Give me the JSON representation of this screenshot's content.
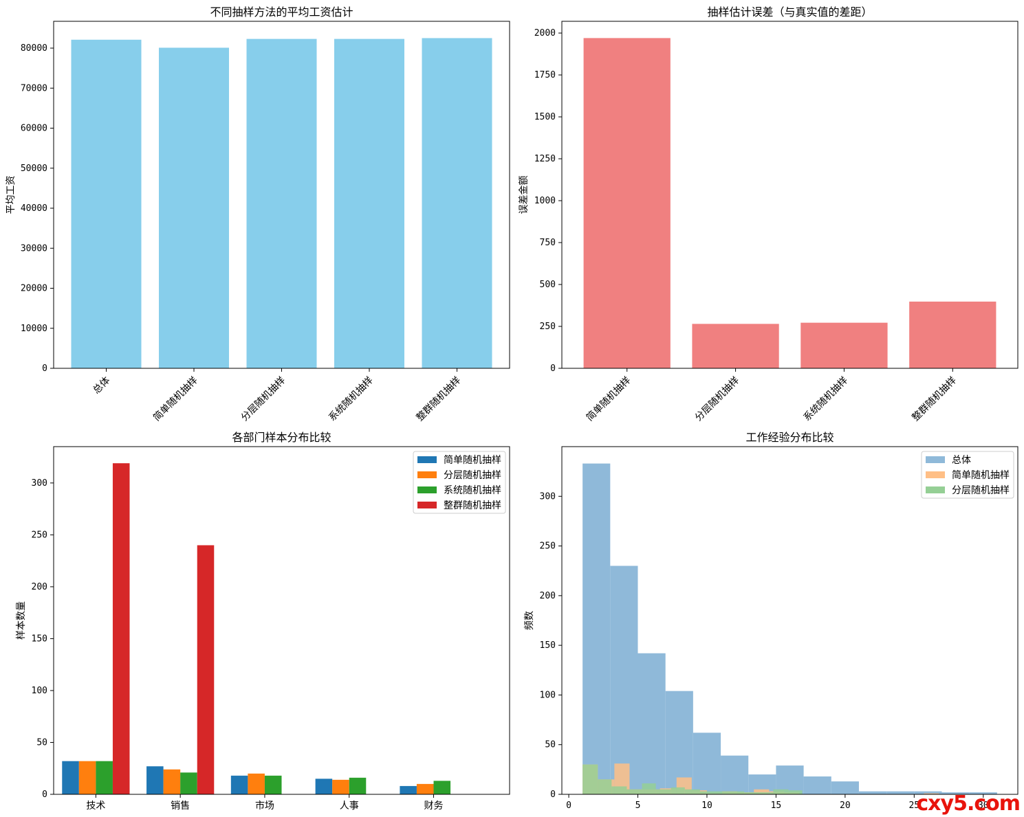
{
  "colors": {
    "skyblue": "#87ceeb",
    "lightcoral": "#f08080",
    "blue": "#1f77b4",
    "orange": "#ff7f0e",
    "green": "#2ca02c",
    "red": "#d62728",
    "hist_total": "#8fb9d9",
    "hist_simple": "#ffbf86",
    "hist_strat": "#95cf95"
  },
  "chart_data": [
    {
      "type": "bar",
      "title": "不同抽样方法的平均工资估计",
      "xlabel": "",
      "ylabel": "平均工资",
      "categories": [
        "总体",
        "简单随机抽样",
        "分层随机抽样",
        "系统随机抽样",
        "整群随机抽样"
      ],
      "values": [
        82100,
        80100,
        82300,
        82300,
        82500
      ],
      "ylim": [
        0,
        86700
      ],
      "yticks": [
        0,
        10000,
        20000,
        30000,
        40000,
        50000,
        60000,
        70000,
        80000
      ],
      "tick_rotation": 45
    },
    {
      "type": "bar",
      "title": "抽样估计误差（与真实值的差距）",
      "xlabel": "",
      "ylabel": "误差金额",
      "categories": [
        "简单随机抽样",
        "分层随机抽样",
        "系统随机抽样",
        "整群随机抽样"
      ],
      "values": [
        1970,
        265,
        272,
        398
      ],
      "ylim": [
        0,
        2070
      ],
      "yticks": [
        0,
        250,
        500,
        750,
        1000,
        1250,
        1500,
        1750,
        2000
      ],
      "tick_rotation": 45
    },
    {
      "type": "bar",
      "title": "各部门样本分布比较",
      "xlabel": "",
      "ylabel": "样本数量",
      "categories": [
        "技术",
        "销售",
        "市场",
        "人事",
        "财务"
      ],
      "series": [
        {
          "name": "简单随机抽样",
          "values": [
            32,
            27,
            18,
            15,
            8
          ]
        },
        {
          "name": "分层随机抽样",
          "values": [
            32,
            24,
            20,
            14,
            10
          ]
        },
        {
          "name": "系统随机抽样",
          "values": [
            32,
            21,
            18,
            16,
            13
          ]
        },
        {
          "name": "整群随机抽样",
          "values": [
            319,
            240,
            0,
            0,
            0
          ]
        }
      ],
      "ylim": [
        0,
        335
      ],
      "yticks": [
        0,
        50,
        100,
        150,
        200,
        250,
        300
      ],
      "legend": "top-right"
    },
    {
      "type": "histogram",
      "title": "工作经验分布比较",
      "xlabel": "",
      "ylabel": "频数",
      "xlim": [
        -0.5,
        32.5
      ],
      "ylim": [
        0,
        350
      ],
      "xticks": [
        0,
        5,
        10,
        15,
        20,
        25,
        30
      ],
      "yticks": [
        0,
        50,
        100,
        150,
        200,
        250,
        300
      ],
      "legend": "top-right",
      "series": [
        {
          "name": "总体",
          "bins": [
            1,
            3,
            5,
            7,
            9,
            11,
            13,
            15,
            17,
            19,
            21,
            23,
            25,
            27,
            29,
            31
          ],
          "counts": [
            333,
            230,
            142,
            104,
            62,
            39,
            20,
            29,
            18,
            13,
            3,
            3,
            3,
            2,
            2
          ]
        },
        {
          "name": "简单随机抽样",
          "bins": [
            1,
            2.1,
            3.3,
            4.4,
            5.5,
            6.6,
            7.8,
            8.9,
            10,
            11.1,
            12.2,
            13.4,
            14.5,
            15.6,
            16.7,
            17.8,
            19,
            20.1,
            21.2,
            22.3,
            23.4,
            24.6,
            25.7,
            26.8,
            27.9,
            29,
            30.1
          ],
          "counts": [
            30,
            15,
            31,
            5,
            5,
            6,
            17,
            4,
            1,
            3,
            2,
            5,
            3,
            2,
            0,
            0,
            0,
            0,
            0,
            0,
            0,
            0,
            1,
            0,
            0,
            0
          ]
        },
        {
          "name": "分层随机抽样",
          "bins": [
            1,
            2.1,
            3.1,
            4.2,
            5.3,
            6.3,
            7.4,
            8.4,
            9.5,
            10.6,
            11.6,
            12.7,
            13.8,
            14.8,
            15.9,
            16.9,
            18
          ],
          "counts": [
            30,
            15,
            8,
            5,
            11,
            5,
            7,
            5,
            3,
            3,
            3,
            2,
            2,
            5,
            4,
            0
          ]
        }
      ]
    }
  ]
}
